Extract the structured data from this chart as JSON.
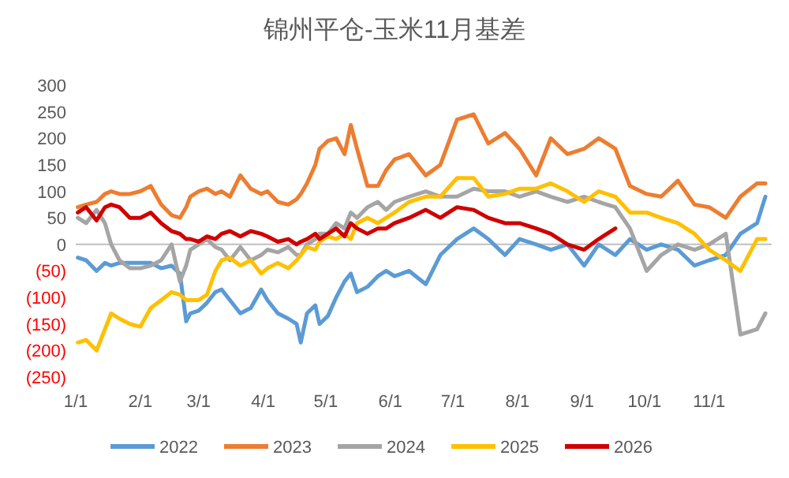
{
  "chart_data": {
    "type": "line",
    "title": "锦州平仓-玉米11月基差",
    "x": [
      "--01-02",
      "--01-06",
      "--01-11",
      "--01-15",
      "--01-18",
      "--01-22",
      "--01-27",
      "--02-01",
      "--02-06",
      "--02-11",
      "--02-16",
      "--02-20",
      "--02-23",
      "--02-25",
      "--03-01",
      "--03-05",
      "--03-09",
      "--03-12",
      "--03-16",
      "--03-21",
      "--03-26",
      "--03-31",
      "--04-03",
      "--04-08",
      "--04-13",
      "--04-17",
      "--04-19",
      "--04-22",
      "--04-26",
      "--04-28",
      "--05-02",
      "--05-06",
      "--05-10",
      "--05-13",
      "--05-16",
      "--05-21",
      "--05-26",
      "--05-30",
      "--06-03",
      "--06-10",
      "--06-18",
      "--06-25",
      "--07-03",
      "--07-11",
      "--07-18",
      "--07-26",
      "--08-02",
      "--08-10",
      "--08-17",
      "--08-25",
      "--09-02",
      "--09-09",
      "--09-17",
      "--09-24",
      "--10-02",
      "--10-09",
      "--10-17",
      "--10-25",
      "--11-01",
      "--11-09",
      "--11-16",
      "--11-24",
      "--11-28"
    ],
    "series": [
      {
        "name": "2022",
        "color": "#5b9bd5",
        "values": [
          -25,
          -30,
          -50,
          -35,
          -40,
          -35,
          -35,
          -35,
          -35,
          -45,
          -40,
          -55,
          -145,
          -130,
          -125,
          -110,
          -90,
          -85,
          -105,
          -130,
          -120,
          -85,
          -105,
          -130,
          -140,
          -150,
          -185,
          -130,
          -115,
          -150,
          -135,
          -100,
          -70,
          -55,
          -90,
          -80,
          -60,
          -50,
          -60,
          -50,
          -75,
          -20,
          10,
          30,
          10,
          -20,
          10,
          0,
          -10,
          0,
          -40,
          0,
          -20,
          10,
          -10,
          0,
          -10,
          -40,
          -30,
          -20,
          20,
          40,
          90
        ]
      },
      {
        "name": "2023",
        "color": "#ed7d31",
        "values": [
          70,
          75,
          80,
          95,
          100,
          95,
          95,
          100,
          110,
          75,
          55,
          50,
          70,
          90,
          100,
          105,
          95,
          100,
          90,
          130,
          105,
          95,
          100,
          80,
          75,
          85,
          95,
          115,
          150,
          180,
          195,
          200,
          170,
          225,
          180,
          110,
          110,
          140,
          160,
          170,
          130,
          150,
          235,
          245,
          190,
          210,
          180,
          130,
          200,
          170,
          180,
          200,
          180,
          110,
          95,
          90,
          120,
          75,
          70,
          50,
          90,
          115,
          115
        ]
      },
      {
        "name": "2024",
        "color": "#a5a5a5",
        "values": [
          50,
          40,
          65,
          40,
          0,
          -30,
          -45,
          -45,
          -40,
          -30,
          0,
          -70,
          -40,
          -10,
          0,
          10,
          -5,
          -10,
          -30,
          -5,
          -30,
          -20,
          -10,
          -15,
          -5,
          -20,
          -20,
          0,
          10,
          20,
          20,
          40,
          30,
          60,
          50,
          70,
          80,
          65,
          80,
          90,
          100,
          90,
          90,
          105,
          100,
          100,
          90,
          100,
          90,
          80,
          90,
          80,
          70,
          30,
          -50,
          -20,
          0,
          -10,
          0,
          20,
          -170,
          -160,
          -130
        ]
      },
      {
        "name": "2025",
        "color": "#ffc000",
        "values": [
          -185,
          -180,
          -200,
          -160,
          -130,
          -140,
          -150,
          -155,
          -120,
          -105,
          -90,
          -95,
          -105,
          -105,
          -105,
          -95,
          -50,
          -30,
          -25,
          -40,
          -30,
          -55,
          -45,
          -35,
          -45,
          -30,
          -20,
          -5,
          -10,
          5,
          15,
          10,
          20,
          10,
          40,
          50,
          40,
          50,
          60,
          80,
          90,
          90,
          125,
          125,
          90,
          95,
          105,
          105,
          115,
          100,
          80,
          100,
          90,
          60,
          60,
          50,
          40,
          20,
          -10,
          -30,
          -50,
          10,
          10
        ]
      },
      {
        "name": "2026",
        "color": "#d00000",
        "values": [
          60,
          70,
          45,
          70,
          75,
          70,
          50,
          50,
          60,
          40,
          25,
          20,
          10,
          10,
          5,
          15,
          10,
          20,
          25,
          15,
          25,
          20,
          15,
          5,
          10,
          0,
          5,
          10,
          20,
          10,
          20,
          30,
          15,
          40,
          30,
          20,
          30,
          30,
          40,
          50,
          65,
          50,
          70,
          65,
          50,
          40,
          40,
          30,
          20,
          0,
          -10,
          10,
          30,
          null,
          null,
          null,
          null,
          null,
          null,
          null,
          null,
          null,
          null
        ]
      }
    ],
    "xlim": [
      "--01-01",
      "--12-01"
    ],
    "xticks": [
      {
        "value": "--01-01",
        "label": "1/1"
      },
      {
        "value": "--02-01",
        "label": "2/1"
      },
      {
        "value": "--03-01",
        "label": "3/1"
      },
      {
        "value": "--04-01",
        "label": "4/1"
      },
      {
        "value": "--05-01",
        "label": "5/1"
      },
      {
        "value": "--06-01",
        "label": "6/1"
      },
      {
        "value": "--07-01",
        "label": "7/1"
      },
      {
        "value": "--08-01",
        "label": "8/1"
      },
      {
        "value": "--09-01",
        "label": "9/1"
      },
      {
        "value": "--10-01",
        "label": "10/1"
      },
      {
        "value": "--11-01",
        "label": "11/1"
      }
    ],
    "ylim": [
      -250,
      300
    ],
    "yticks": [
      300,
      250,
      200,
      150,
      100,
      50,
      0,
      {
        "value": -50,
        "label": "(50)"
      },
      {
        "value": -100,
        "label": "(100)"
      },
      {
        "value": -150,
        "label": "(150)"
      },
      {
        "value": -200,
        "label": "(200)"
      },
      {
        "value": -250,
        "label": "(250)"
      }
    ],
    "ref_lines": [
      {
        "axis": "y",
        "value": 0,
        "color": "#bfbfbf"
      }
    ],
    "legend": "bottom",
    "marker": "none",
    "line_style": "solid"
  }
}
